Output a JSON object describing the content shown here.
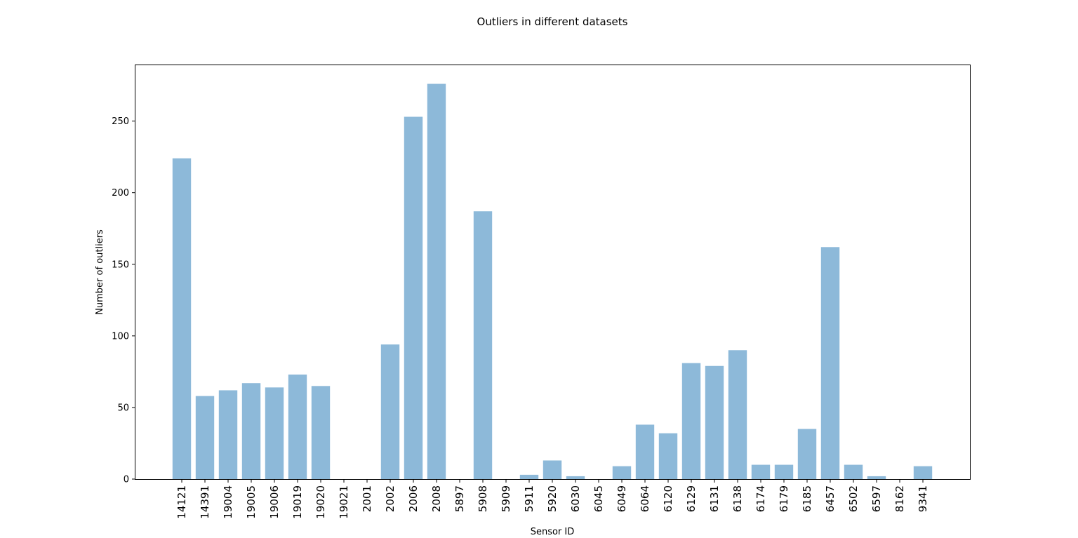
{
  "chart_data": {
    "type": "bar",
    "title": "Outliers in different datasets",
    "xlabel": "Sensor ID",
    "ylabel": "Number of outliers",
    "categories": [
      "14121",
      "14391",
      "19004",
      "19005",
      "19006",
      "19019",
      "19020",
      "19021",
      "2001",
      "2002",
      "2006",
      "2008",
      "5897",
      "5908",
      "5909",
      "5911",
      "5920",
      "6030",
      "6045",
      "6049",
      "6064",
      "6120",
      "6129",
      "6131",
      "6138",
      "6174",
      "6179",
      "6185",
      "6457",
      "6502",
      "6597",
      "8162",
      "9341"
    ],
    "values": [
      224,
      58,
      62,
      67,
      64,
      73,
      65,
      0,
      0,
      94,
      253,
      276,
      0,
      187,
      0,
      3,
      13,
      2,
      0,
      9,
      38,
      32,
      81,
      79,
      90,
      10,
      10,
      35,
      162,
      10,
      2,
      0,
      9
    ],
    "ylim": [
      0,
      289
    ],
    "yticks": [
      0,
      50,
      100,
      150,
      200,
      250
    ],
    "color": "#8db9d9",
    "grid": false
  }
}
